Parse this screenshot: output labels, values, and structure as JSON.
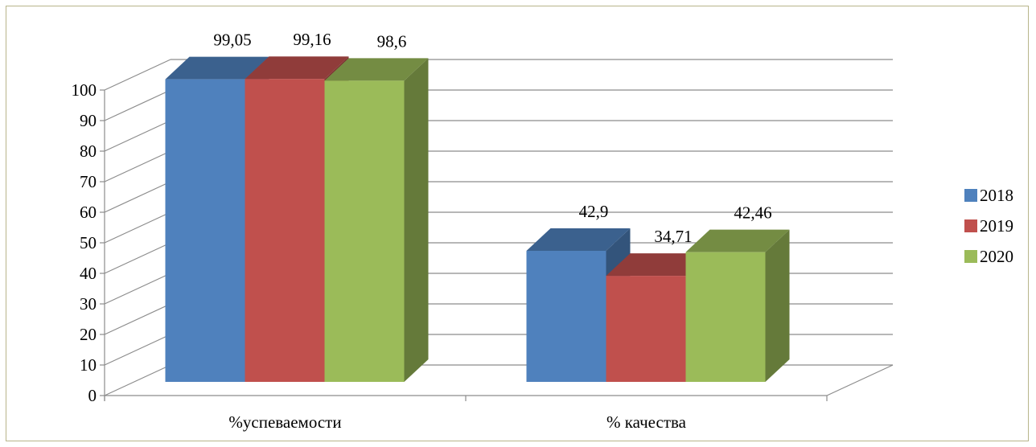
{
  "chart_data": {
    "type": "bar",
    "title": "",
    "xlabel": "",
    "ylabel": "",
    "ylim": [
      0,
      100
    ],
    "yticks": [
      "0",
      "10",
      "20",
      "30",
      "40",
      "50",
      "60",
      "70",
      "80",
      "90",
      "100"
    ],
    "grid": true,
    "legend_position": "right",
    "categories": [
      "%успеваемости",
      "% качества"
    ],
    "series": [
      {
        "name": "2018",
        "values": [
          99.05,
          42.9
        ],
        "labels": [
          "99,05",
          "42,9"
        ],
        "color": "#4f81bd"
      },
      {
        "name": "2019",
        "values": [
          99.16,
          34.71
        ],
        "labels": [
          "99,16",
          "34,71"
        ],
        "color": "#c0504d"
      },
      {
        "name": "2020",
        "values": [
          98.6,
          42.46
        ],
        "labels": [
          "98,6",
          "42,46"
        ],
        "color": "#9bbb59"
      }
    ]
  },
  "frame_border_color": "#b8b58a",
  "gridline_color": "#8c8c8c"
}
